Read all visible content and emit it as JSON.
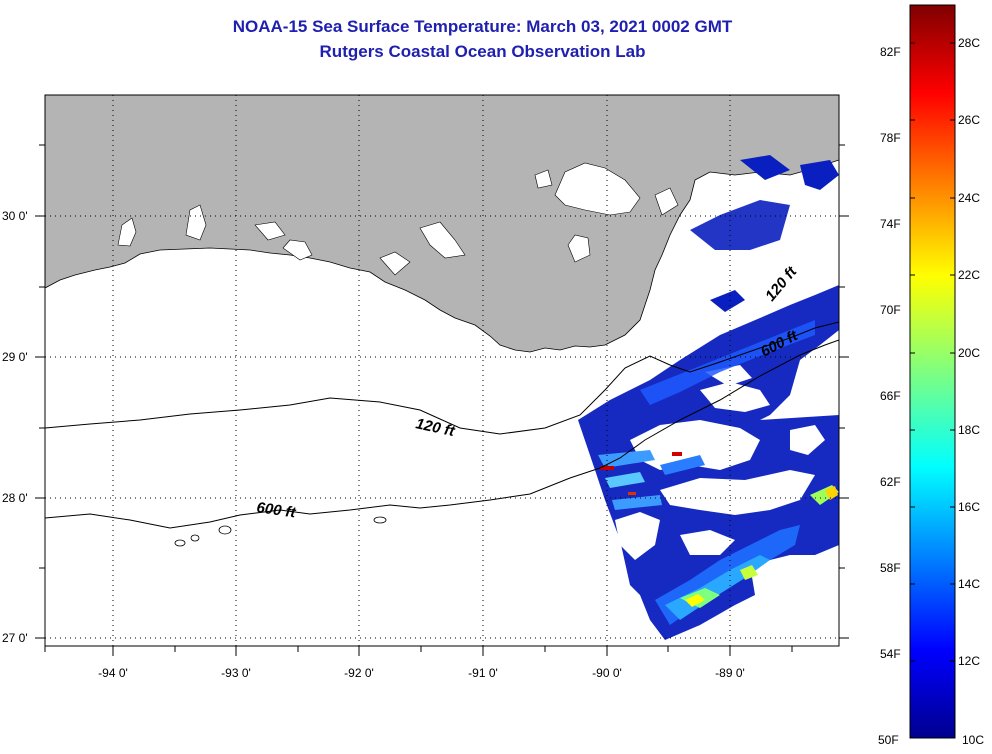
{
  "title": "NOAA-15 Sea Surface Temperature:  March 03, 2021 0002 GMT",
  "subtitle": "Rutgers Coastal Ocean Observation Lab",
  "map": {
    "lon_ticks": [
      "-94 0'",
      "-93 0'",
      "-92 0'",
      "-91 0'",
      "-90 0'",
      "-89 0'"
    ],
    "lat_ticks": [
      "30 0'",
      "29 0'",
      "28 0'",
      "27 0'"
    ],
    "contours": [
      "120 ft",
      "600 ft",
      "120 ft",
      "600 ft"
    ],
    "land_color": "#b4b4b4",
    "grid": "dotted"
  },
  "colorbar": {
    "fahrenheit": [
      "82F",
      "78F",
      "74F",
      "70F",
      "66F",
      "62F",
      "58F",
      "54F",
      "50F"
    ],
    "celsius": [
      "28C",
      "26C",
      "24C",
      "22C",
      "20C",
      "18C",
      "16C",
      "14C",
      "12C",
      "10C"
    ],
    "colormap": "jet",
    "range_c": [
      10,
      29.5
    ]
  }
}
